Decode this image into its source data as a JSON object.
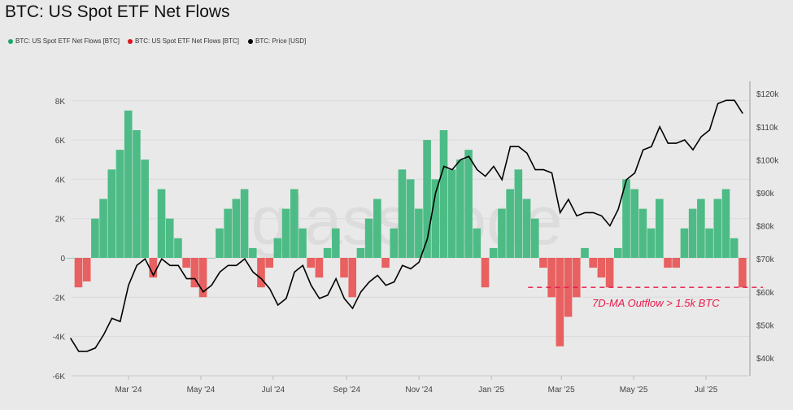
{
  "title": "BTC: US Spot ETF Net Flows",
  "legend": [
    {
      "label": "BTC: US Spot ETF Net Flows [BTC]",
      "color": "#1aa66a"
    },
    {
      "label": "BTC: US Spot ETF Net Flows [BTC]",
      "color": "#e0141e"
    },
    {
      "label": "BTC: Price [USD]",
      "color": "#000000"
    }
  ],
  "watermark": "glassnode",
  "chart_data": {
    "type": "bar",
    "title": "BTC: US Spot ETF Net Flows",
    "x_ticks": [
      "Mar '24",
      "May '24",
      "Jul '24",
      "Sep '24",
      "Nov '24",
      "Jan '25",
      "Mar '25",
      "May '25",
      "Jul '25"
    ],
    "x_tick_dates": [
      "2024-03-01",
      "2024-05-01",
      "2024-07-01",
      "2024-09-01",
      "2024-11-01",
      "2025-01-01",
      "2025-03-01",
      "2025-05-01",
      "2025-07-01"
    ],
    "left_ticks": [
      {
        "v": 8000,
        "l": "8K"
      },
      {
        "v": 6000,
        "l": "6K"
      },
      {
        "v": 4000,
        "l": "4K"
      },
      {
        "v": 2000,
        "l": "2K"
      },
      {
        "v": 0,
        "l": "0"
      },
      {
        "v": -2000,
        "l": "-2K"
      },
      {
        "v": -4000,
        "l": "-4K"
      },
      {
        "v": -6000,
        "l": "-6K"
      }
    ],
    "right_ticks": [
      {
        "v": 120,
        "l": "$120k"
      },
      {
        "v": 110,
        "l": "$110k"
      },
      {
        "v": 100,
        "l": "$100k"
      },
      {
        "v": 90,
        "l": "$90k"
      },
      {
        "v": 80,
        "l": "$80k"
      },
      {
        "v": 70,
        "l": "$70k"
      },
      {
        "v": 60,
        "l": "$60k"
      },
      {
        "v": 50,
        "l": "$50k"
      },
      {
        "v": 40,
        "l": "$40k"
      }
    ],
    "ylim_left": [
      -6000,
      8000
    ],
    "ylim_right_usd_k": [
      40,
      120
    ],
    "grid": true,
    "colors": {
      "inflow": "#4dbb85",
      "outflow": "#e86060",
      "price": "#000000",
      "threshold": "#e8184a"
    },
    "start_date": "2024-01-12",
    "step_days": 7,
    "flows_btc": [
      0,
      -1500,
      -1200,
      2000,
      3000,
      4500,
      5500,
      7500,
      6500,
      5000,
      -1000,
      3500,
      2000,
      1000,
      -500,
      -1500,
      -2000,
      0,
      1500,
      2500,
      3000,
      3500,
      500,
      -1500,
      -500,
      1000,
      2500,
      3500,
      1500,
      -500,
      -1000,
      500,
      1500,
      -1000,
      -2000,
      500,
      2000,
      3000,
      -500,
      1500,
      4500,
      4000,
      2500,
      6000,
      4000,
      6500,
      4500,
      5000,
      5500,
      1500,
      -1500,
      500,
      2500,
      3500,
      4500,
      3000,
      2000,
      -500,
      -2000,
      -4500,
      -3000,
      -2000,
      500,
      -500,
      -1000,
      -1500,
      500,
      4000,
      3500,
      2500,
      1500,
      3000,
      -500,
      -500,
      1500,
      2500,
      3000,
      1500,
      3000,
      3500,
      1000,
      -1500
    ],
    "price_usd_k": [
      46,
      42,
      42,
      43,
      47,
      52,
      51,
      62,
      68,
      70,
      65,
      70,
      68,
      68,
      64,
      64,
      60,
      62,
      66,
      68,
      68,
      70,
      66,
      64,
      61,
      56,
      58,
      66,
      68,
      62,
      58,
      59,
      64,
      58,
      55,
      60,
      63,
      65,
      62,
      63,
      68,
      67,
      69,
      76,
      90,
      98,
      97,
      100,
      101,
      97,
      95,
      98,
      94,
      104,
      104,
      102,
      97,
      97,
      96,
      84,
      88,
      83,
      84,
      84,
      83,
      80,
      85,
      94,
      96,
      103,
      104,
      110,
      105,
      105,
      106,
      103,
      107,
      109,
      117,
      118,
      118,
      114
    ],
    "threshold": {
      "value": -1500,
      "label": "7D-MA Outflow > 1.5k BTC",
      "from_date": "2025-02-01"
    }
  }
}
